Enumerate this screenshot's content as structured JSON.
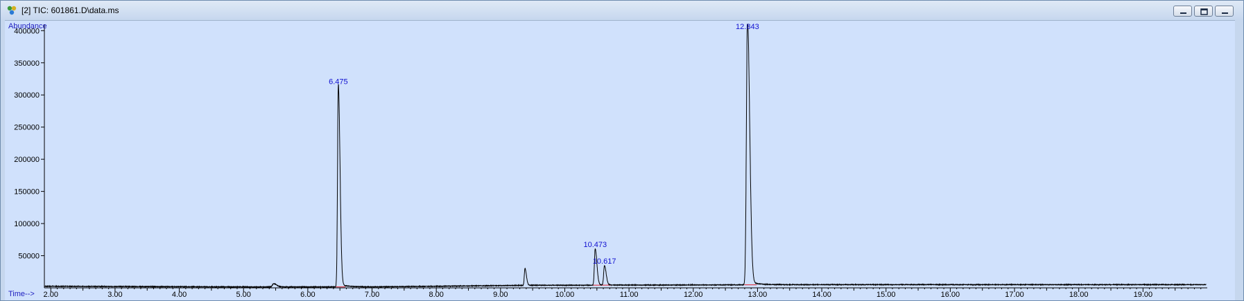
{
  "window": {
    "title": "[2] TIC: 601861.D\\data.ms",
    "icon": "chromatogram-app-icon",
    "controls": [
      "minimize-icon",
      "restore-icon",
      "close-icon"
    ]
  },
  "colors": {
    "plot_bg": "#d0e1fc",
    "trace": "#000000",
    "baseline": "#e0202a",
    "peak_label": "#1010d0",
    "axis_label": "#2020c0"
  },
  "chart_data": {
    "type": "line",
    "xlabel": "Time-->",
    "ylabel": "Abundance",
    "xlim": [
      1.9,
      20.0
    ],
    "ylim": [
      0,
      410000
    ],
    "x_ticks": [
      2.0,
      3.0,
      4.0,
      5.0,
      6.0,
      7.0,
      8.0,
      9.0,
      10.0,
      11.0,
      12.0,
      13.0,
      14.0,
      15.0,
      16.0,
      17.0,
      18.0,
      19.0
    ],
    "x_tick_labels": [
      "2.00",
      "3.00",
      "4.00",
      "5.00",
      "6.00",
      "7.00",
      "8.00",
      "9.00",
      "10.00",
      "11.00",
      "12.00",
      "13.00",
      "14.00",
      "15.00",
      "16.00",
      "17.00",
      "18.00",
      "19.00"
    ],
    "y_ticks": [
      50000,
      100000,
      150000,
      200000,
      250000,
      300000,
      350000,
      400000
    ],
    "y_tick_labels": [
      "50000",
      "100000",
      "150000",
      "200000",
      "250000",
      "300000",
      "350000",
      "400000"
    ],
    "baseline": [
      [
        1.9,
        2500
      ],
      [
        5.0,
        1500
      ],
      [
        7.0,
        1500
      ],
      [
        9.5,
        4000
      ],
      [
        12.0,
        4500
      ],
      [
        14.0,
        5000
      ],
      [
        20.0,
        5000
      ]
    ],
    "peaks": [
      {
        "rt": 5.47,
        "height": 5000,
        "width": 0.02,
        "label": ""
      },
      {
        "rt": 6.475,
        "height": 312000,
        "width": 0.012,
        "label": "6.475"
      },
      {
        "rt": 9.38,
        "height": 26000,
        "width": 0.01,
        "label": ""
      },
      {
        "rt": 10.473,
        "height": 56000,
        "width": 0.012,
        "label": "10.473"
      },
      {
        "rt": 10.617,
        "height": 30000,
        "width": 0.012,
        "label": "10.617"
      },
      {
        "rt": 12.843,
        "height": 412000,
        "width": 0.016,
        "label": "12.843"
      }
    ]
  }
}
